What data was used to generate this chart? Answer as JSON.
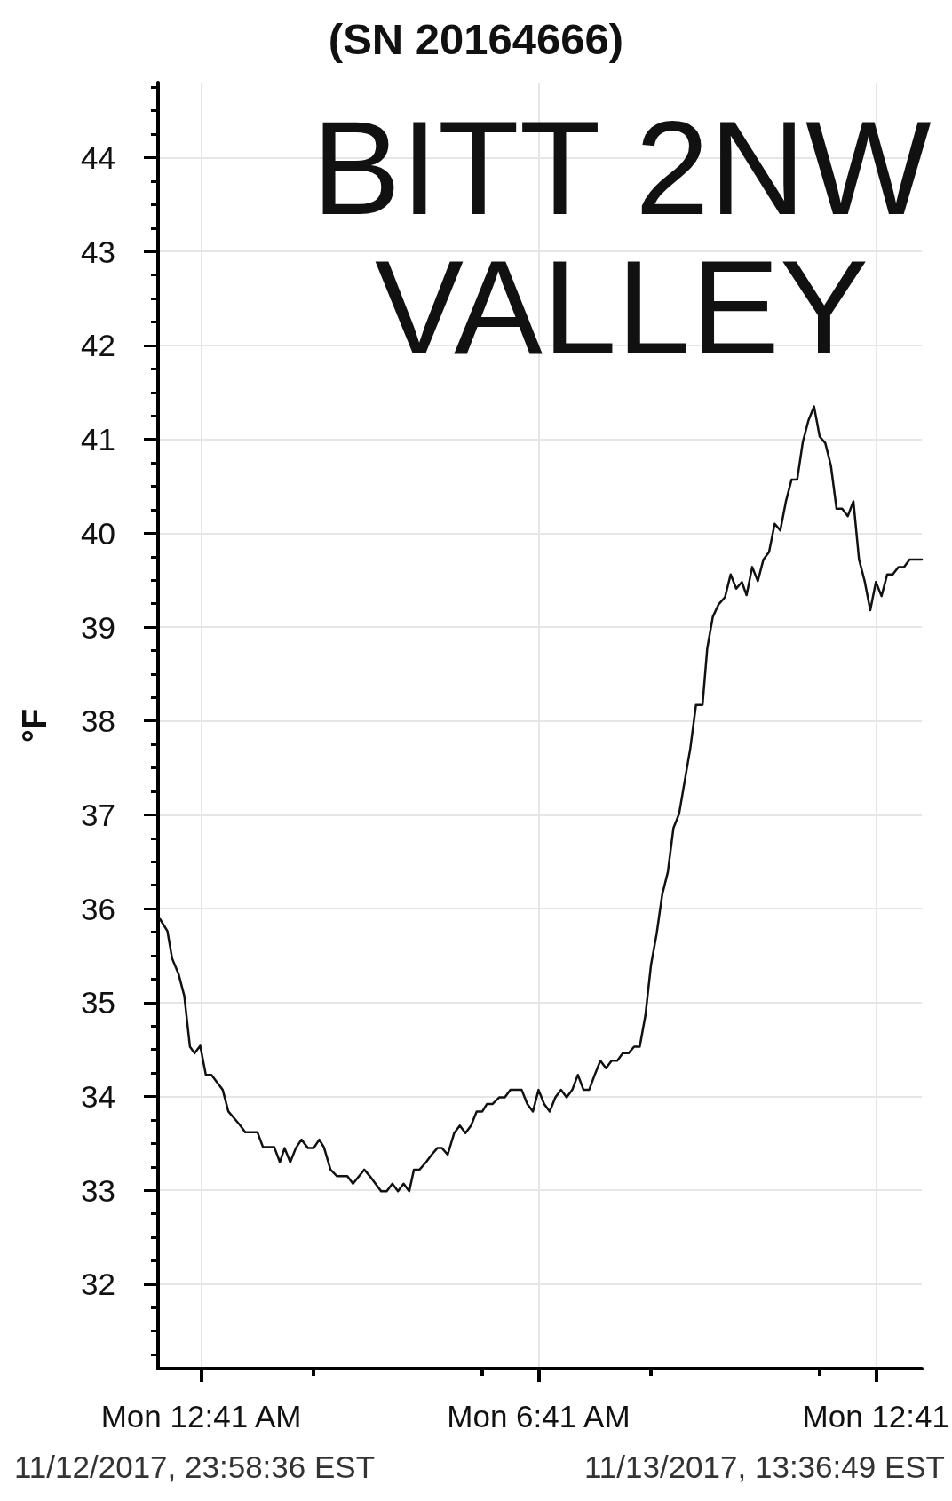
{
  "chart_data": {
    "type": "line",
    "title": "(SN 20164666)",
    "ylabel": "°F",
    "annotations": [
      "BITT 2NW VALLEY",
      "11/12/2017, 23:58:36 EST",
      "11/13/2017, 13:36:49 EST"
    ],
    "x": [
      "2017-11-12T23:57",
      "2017-11-13T00:05",
      "2017-11-13T00:10",
      "2017-11-13T00:17",
      "2017-11-13T00:23",
      "2017-11-13T00:29",
      "2017-11-13T00:34",
      "2017-11-13T00:40",
      "2017-11-13T00:46",
      "2017-11-13T00:52",
      "2017-11-13T00:58",
      "2017-11-13T01:04",
      "2017-11-13T01:10",
      "2017-11-13T01:16",
      "2017-11-13T01:22",
      "2017-11-13T01:28",
      "2017-11-13T01:41",
      "2017-11-13T01:47",
      "2017-11-13T01:59",
      "2017-11-13T02:05",
      "2017-11-13T02:10",
      "2017-11-13T02:16",
      "2017-11-13T02:22",
      "2017-11-13T02:28",
      "2017-11-13T02:35",
      "2017-11-13T02:41",
      "2017-11-13T02:47",
      "2017-11-13T02:52",
      "2017-11-13T02:59",
      "2017-11-13T03:06",
      "2017-11-13T03:17",
      "2017-11-13T03:23",
      "2017-11-13T03:35",
      "2017-11-13T03:41",
      "2017-11-13T03:47",
      "2017-11-13T03:53",
      "2017-11-13T03:59",
      "2017-11-13T04:05",
      "2017-11-13T04:11",
      "2017-11-13T04:17",
      "2017-11-13T04:23",
      "2017-11-13T04:28",
      "2017-11-13T04:34",
      "2017-11-13T04:41",
      "2017-11-13T04:47",
      "2017-11-13T04:53",
      "2017-11-13T04:58",
      "2017-11-13T05:04",
      "2017-11-13T05:11",
      "2017-11-13T05:17",
      "2017-11-13T05:23",
      "2017-11-13T05:29",
      "2017-11-13T05:35",
      "2017-11-13T05:41",
      "2017-11-13T05:46",
      "2017-11-13T05:52",
      "2017-11-13T05:59",
      "2017-11-13T06:05",
      "2017-11-13T06:11",
      "2017-11-13T06:23",
      "2017-11-13T06:29",
      "2017-11-13T06:35",
      "2017-11-13T06:41",
      "2017-11-13T06:47",
      "2017-11-13T06:53",
      "2017-11-13T06:59",
      "2017-11-13T07:05",
      "2017-11-13T07:11",
      "2017-11-13T07:17",
      "2017-11-13T07:23",
      "2017-11-13T07:29",
      "2017-11-13T07:35",
      "2017-11-13T07:41",
      "2017-11-13T07:47",
      "2017-11-13T07:53",
      "2017-11-13T07:59",
      "2017-11-13T08:05",
      "2017-11-13T08:11",
      "2017-11-13T08:17",
      "2017-11-13T08:23",
      "2017-11-13T08:29",
      "2017-11-13T08:35",
      "2017-11-13T08:41",
      "2017-11-13T08:47",
      "2017-11-13T08:53",
      "2017-11-13T08:59",
      "2017-11-13T09:05",
      "2017-11-13T09:11",
      "2017-11-13T09:17",
      "2017-11-13T09:23",
      "2017-11-13T09:29",
      "2017-11-13T09:36",
      "2017-11-13T09:41",
      "2017-11-13T09:47",
      "2017-11-13T09:53",
      "2017-11-13T10:00",
      "2017-11-13T10:06",
      "2017-11-13T10:12",
      "2017-11-13T10:18",
      "2017-11-13T10:23",
      "2017-11-13T10:29",
      "2017-11-13T10:35",
      "2017-11-13T10:41",
      "2017-11-13T10:47",
      "2017-11-13T10:53",
      "2017-11-13T10:59",
      "2017-11-13T11:05",
      "2017-11-13T11:11",
      "2017-11-13T11:17",
      "2017-11-13T11:23",
      "2017-11-13T11:29",
      "2017-11-13T11:35",
      "2017-11-13T11:41",
      "2017-11-13T11:47",
      "2017-11-13T11:53",
      "2017-11-13T11:59",
      "2017-11-13T12:05",
      "2017-11-13T12:11",
      "2017-11-13T12:17",
      "2017-11-13T12:23",
      "2017-11-13T12:29",
      "2017-11-13T12:35",
      "2017-11-13T12:41",
      "2017-11-13T12:47",
      "2017-11-13T12:53",
      "2017-11-13T12:59",
      "2017-11-13T13:05",
      "2017-11-13T13:11",
      "2017-11-13T13:17",
      "2017-11-13T13:30"
    ],
    "values": [
      35.89,
      35.76,
      35.47,
      35.3,
      35.07,
      34.53,
      34.46,
      34.54,
      34.23,
      34.23,
      34.15,
      34.07,
      33.84,
      33.77,
      33.7,
      33.62,
      33.62,
      33.46,
      33.46,
      33.3,
      33.45,
      33.3,
      33.45,
      33.54,
      33.45,
      33.45,
      33.54,
      33.46,
      33.22,
      33.15,
      33.15,
      33.07,
      33.22,
      33.15,
      33.07,
      32.99,
      32.99,
      33.07,
      32.99,
      33.07,
      32.99,
      33.22,
      33.22,
      33.3,
      33.38,
      33.45,
      33.45,
      33.38,
      33.61,
      33.69,
      33.61,
      33.69,
      33.84,
      33.84,
      33.92,
      33.92,
      33.99,
      33.99,
      34.07,
      34.07,
      33.92,
      33.84,
      34.07,
      33.92,
      33.84,
      33.99,
      34.07,
      33.99,
      34.07,
      34.23,
      34.07,
      34.07,
      34.23,
      34.38,
      34.3,
      34.38,
      34.38,
      34.46,
      34.46,
      34.53,
      34.53,
      34.86,
      35.4,
      35.73,
      36.15,
      36.39,
      36.86,
      37.01,
      37.36,
      37.71,
      38.17,
      38.17,
      38.77,
      39.11,
      39.24,
      39.32,
      39.56,
      39.41,
      39.48,
      39.34,
      39.64,
      39.49,
      39.72,
      39.8,
      40.1,
      40.03,
      40.34,
      40.57,
      40.57,
      40.97,
      41.2,
      41.35,
      41.03,
      40.96,
      40.72,
      40.26,
      40.26,
      40.18,
      40.34,
      39.72,
      39.49,
      39.18,
      39.48,
      39.33,
      39.56,
      39.56,
      39.64,
      39.64,
      39.72,
      39.72
    ],
    "color": "#111111",
    "line_style": "solid",
    "grid": true,
    "xlim": [
      "2017-11-12T23:55",
      "2017-11-13T13:30"
    ],
    "xticks": [
      {
        "value": "2017-11-13T00:41",
        "label": "Mon 12:41 AM"
      },
      {
        "value": "2017-11-13T02:41",
        "label": null
      },
      {
        "value": "2017-11-13T05:41",
        "label": null
      },
      {
        "value": "2017-11-13T06:41",
        "label": "Mon 6:41 AM"
      },
      {
        "value": "2017-11-13T08:41",
        "label": null
      },
      {
        "value": "2017-11-13T11:41",
        "label": null
      },
      {
        "value": "2017-11-13T12:41",
        "label": "Mon 12:41"
      }
    ],
    "ylim": [
      31.1,
      44.8
    ],
    "yticks": [
      {
        "value": 31.25,
        "label": null
      },
      {
        "value": 31.5,
        "label": null
      },
      {
        "value": 31.75,
        "label": null
      },
      32,
      {
        "value": 32.25,
        "label": null
      },
      {
        "value": 32.5,
        "label": null
      },
      {
        "value": 32.75,
        "label": null
      },
      33,
      {
        "value": 33.25,
        "label": null
      },
      {
        "value": 33.5,
        "label": null
      },
      {
        "value": 33.75,
        "label": null
      },
      34,
      {
        "value": 34.25,
        "label": null
      },
      {
        "value": 34.5,
        "label": null
      },
      {
        "value": 34.75,
        "label": null
      },
      35,
      {
        "value": 35.25,
        "label": null
      },
      {
        "value": 35.5,
        "label": null
      },
      {
        "value": 35.75,
        "label": null
      },
      36,
      {
        "value": 36.25,
        "label": null
      },
      {
        "value": 36.5,
        "label": null
      },
      {
        "value": 36.75,
        "label": null
      },
      37,
      {
        "value": 37.25,
        "label": null
      },
      {
        "value": 37.5,
        "label": null
      },
      {
        "value": 37.75,
        "label": null
      },
      38,
      {
        "value": 38.25,
        "label": null
      },
      {
        "value": 38.5,
        "label": null
      },
      {
        "value": 38.75,
        "label": null
      },
      39,
      {
        "value": 39.25,
        "label": null
      },
      {
        "value": 39.5,
        "label": null
      },
      {
        "value": 39.75,
        "label": null
      },
      40,
      {
        "value": 40.25,
        "label": null
      },
      {
        "value": 40.5,
        "label": null
      },
      {
        "value": 40.75,
        "label": null
      },
      41,
      {
        "value": 41.25,
        "label": null
      },
      {
        "value": 41.5,
        "label": null
      },
      {
        "value": 41.75,
        "label": null
      },
      42,
      {
        "value": 42.25,
        "label": null
      },
      {
        "value": 42.5,
        "label": null
      },
      {
        "value": 42.75,
        "label": null
      },
      43,
      {
        "value": 43.25,
        "label": null
      },
      {
        "value": 43.5,
        "label": null
      },
      {
        "value": 43.75,
        "label": null
      },
      44,
      {
        "value": 44.25,
        "label": null
      },
      {
        "value": 44.5,
        "label": null
      },
      {
        "value": 44.75,
        "label": null
      }
    ]
  }
}
